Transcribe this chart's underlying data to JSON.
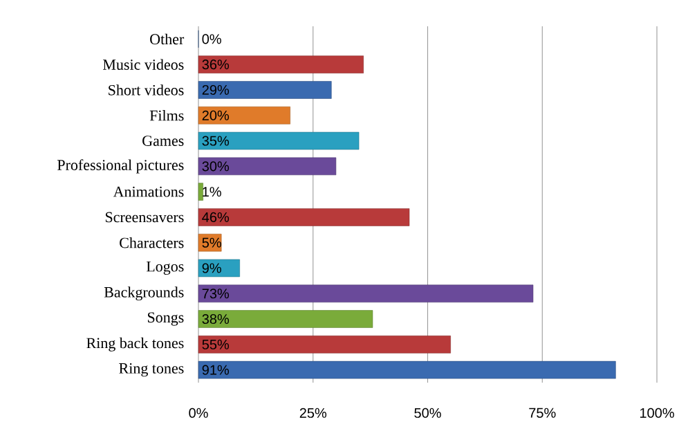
{
  "chart_data": {
    "type": "bar",
    "orientation": "horizontal",
    "categories": [
      "Other",
      "Music videos",
      "Short videos",
      "Films",
      "Games",
      "Professional pictures",
      "Animations",
      "Screensavers",
      "Characters",
      "Logos",
      "Backgrounds",
      "Songs",
      "Ring back tones",
      "Ring tones"
    ],
    "values": [
      0,
      36,
      29,
      20,
      35,
      30,
      1,
      46,
      5,
      9,
      73,
      38,
      55,
      91
    ],
    "colors": [
      "#3a6ab0",
      "#b83a3a",
      "#3a6ab0",
      "#e07b2a",
      "#2aa0c0",
      "#6a4a9a",
      "#7aab3a",
      "#b83a3a",
      "#e07b2a",
      "#2aa0c0",
      "#6a4a9a",
      "#7aab3a",
      "#b83a3a",
      "#3a6ab0"
    ],
    "value_labels": [
      "0%",
      "36%",
      "29%",
      "20%",
      "35%",
      "30%",
      "1%",
      "46%",
      "5%",
      "9%",
      "73%",
      "38%",
      "55%",
      "91%"
    ],
    "xlim": [
      0,
      100
    ],
    "xticks": [
      {
        "value": 0,
        "label": "0%"
      },
      {
        "value": 25,
        "label": "25%"
      },
      {
        "value": 50,
        "label": "50%"
      },
      {
        "value": 75,
        "label": "75%"
      },
      {
        "value": 100,
        "label": "100%"
      }
    ],
    "grid": "x"
  }
}
